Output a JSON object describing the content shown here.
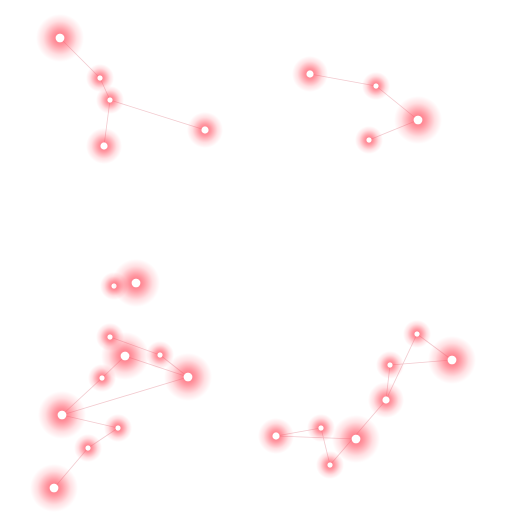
{
  "colors": {
    "background": "#ffffff",
    "glow": "#ff4d5e",
    "core": "#ffffff",
    "link": "#f2c9ce"
  },
  "constellations": [
    {
      "id": "upper-left",
      "stars": [
        {
          "id": "ul-1",
          "size": "large"
        },
        {
          "id": "ul-2",
          "size": "small"
        },
        {
          "id": "ul-3",
          "size": "small"
        },
        {
          "id": "ul-4",
          "size": "medium"
        },
        {
          "id": "ul-5",
          "size": "medium"
        }
      ],
      "links": [
        [
          "ul-1",
          "ul-2"
        ],
        [
          "ul-2",
          "ul-3"
        ],
        [
          "ul-3",
          "ul-4"
        ],
        [
          "ul-3",
          "ul-5"
        ]
      ]
    },
    {
      "id": "upper-right",
      "stars": [
        {
          "id": "ur-1",
          "size": "medium"
        },
        {
          "id": "ur-2",
          "size": "small"
        },
        {
          "id": "ur-3",
          "size": "large"
        },
        {
          "id": "ur-4",
          "size": "small"
        }
      ],
      "links": [
        [
          "ur-1",
          "ur-2"
        ],
        [
          "ur-2",
          "ur-3"
        ],
        [
          "ur-3",
          "ur-4"
        ]
      ]
    },
    {
      "id": "lower-left",
      "stars": [
        {
          "id": "ll-1",
          "size": "large"
        },
        {
          "id": "ll-2",
          "size": "small"
        },
        {
          "id": "ll-3",
          "size": "small"
        },
        {
          "id": "ll-4",
          "size": "large"
        },
        {
          "id": "ll-5",
          "size": "small"
        },
        {
          "id": "ll-6",
          "size": "large"
        },
        {
          "id": "ll-7",
          "size": "large"
        },
        {
          "id": "ll-8",
          "size": "small"
        },
        {
          "id": "ll-9",
          "size": "small"
        }
      ],
      "links": [
        [
          "ll-1",
          "ll-2"
        ],
        [
          "ll-2",
          "ll-3"
        ],
        [
          "ll-3",
          "ll-4"
        ],
        [
          "ll-4",
          "ll-5"
        ],
        [
          "ll-5",
          "ll-6"
        ],
        [
          "ll-6",
          "ll-7"
        ],
        [
          "ll-4",
          "ll-7"
        ],
        [
          "ll-7",
          "ll-8"
        ],
        [
          "ll-8",
          "ll-9"
        ]
      ]
    },
    {
      "id": "lower-right",
      "stars": [
        {
          "id": "lr-1",
          "size": "medium"
        },
        {
          "id": "lr-2",
          "size": "large"
        },
        {
          "id": "lr-3",
          "size": "small"
        },
        {
          "id": "lr-4",
          "size": "small"
        },
        {
          "id": "lr-5",
          "size": "medium"
        },
        {
          "id": "lr-6",
          "size": "small"
        },
        {
          "id": "lr-7",
          "size": "large"
        },
        {
          "id": "lr-8",
          "size": "small"
        }
      ],
      "links": [
        [
          "lr-1",
          "lr-2"
        ],
        [
          "lr-1",
          "lr-3"
        ],
        [
          "lr-3",
          "lr-4"
        ],
        [
          "lr-4",
          "lr-5"
        ],
        [
          "lr-5",
          "lr-6"
        ],
        [
          "lr-6",
          "lr-7"
        ],
        [
          "lr-7",
          "lr-8"
        ],
        [
          "lr-8",
          "lr-5"
        ]
      ]
    }
  ]
}
